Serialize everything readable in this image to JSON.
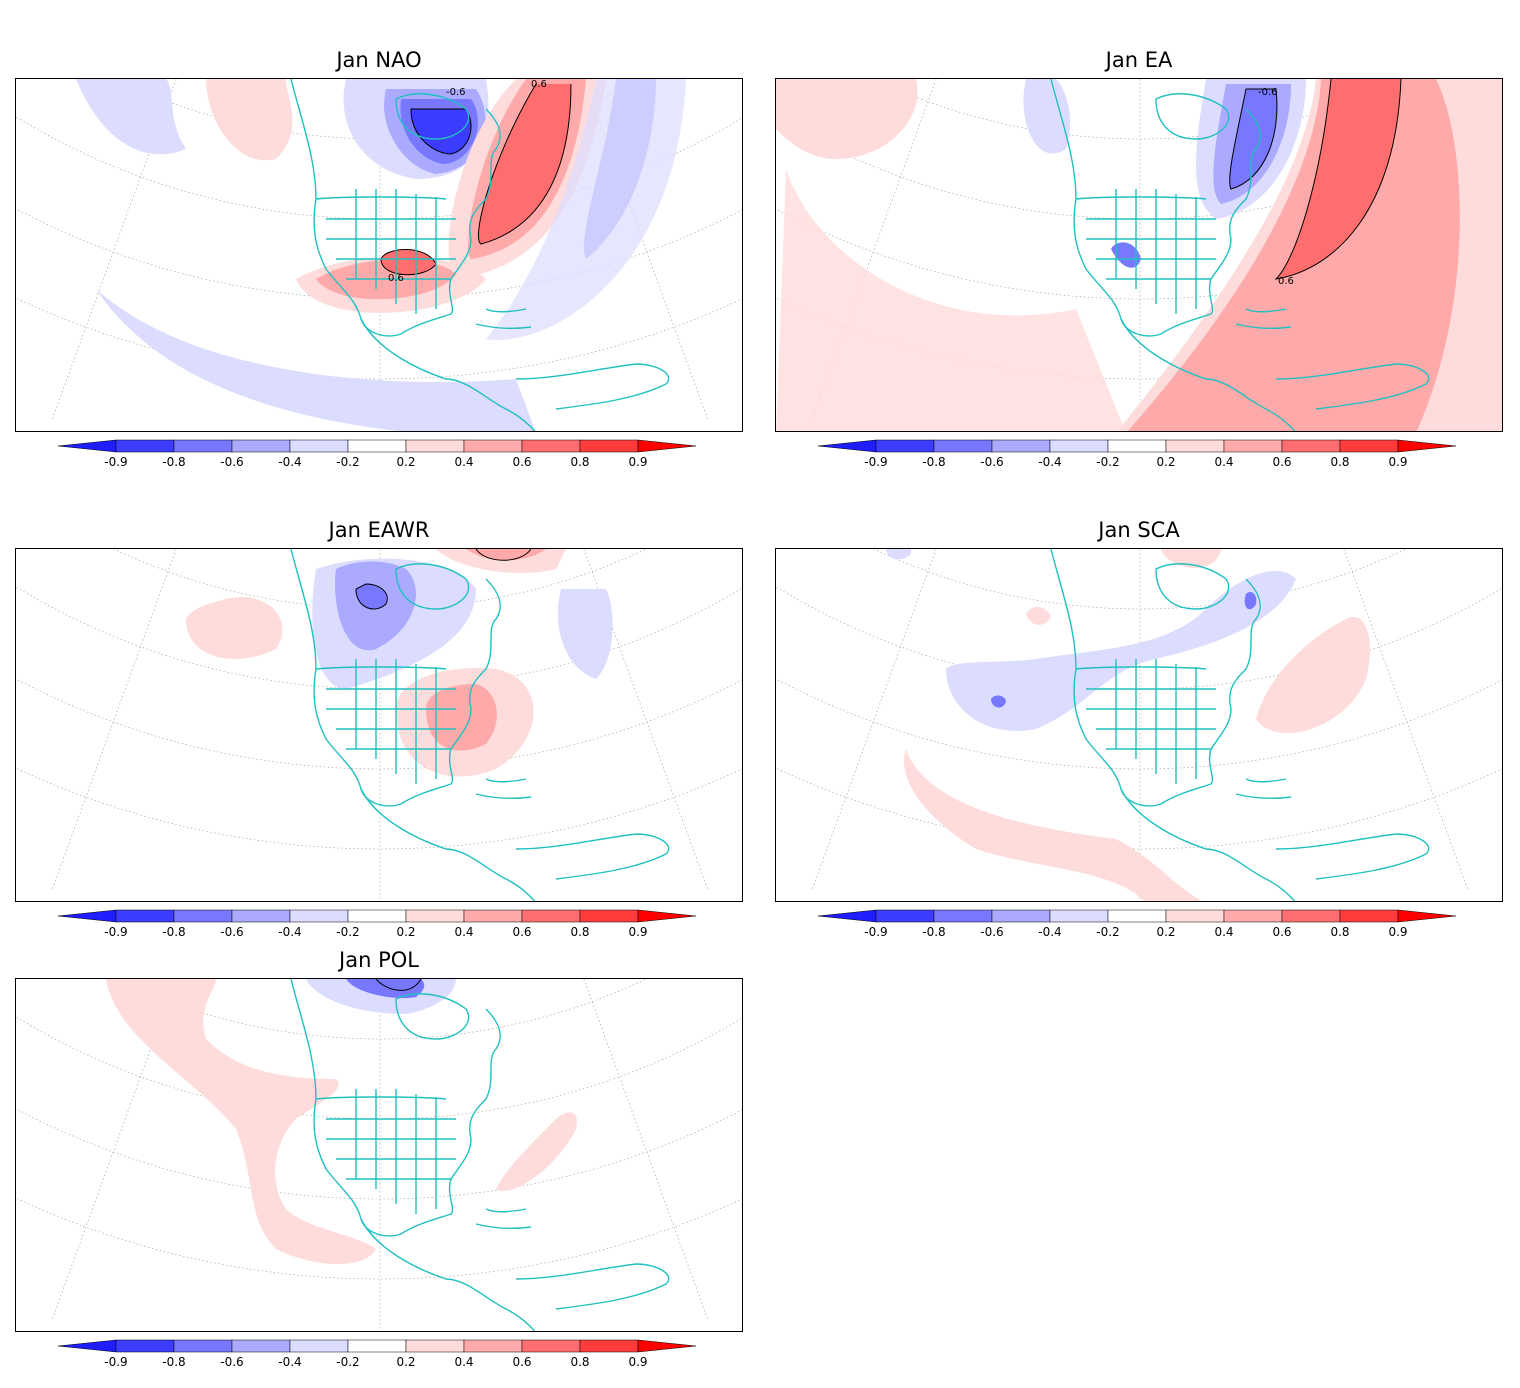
{
  "panels": [
    {
      "title": "Jan NAO",
      "contour_labels": [
        "-0.6",
        "0.6",
        "0.6"
      ]
    },
    {
      "title": "Jan EA",
      "contour_labels": [
        "-0.6",
        "0.6"
      ]
    },
    {
      "title": "Jan EAWR",
      "contour_labels": []
    },
    {
      "title": "Jan SCA",
      "contour_labels": []
    },
    {
      "title": "Jan POL",
      "contour_labels": []
    }
  ],
  "colorbar": {
    "ticks": [
      "-0.9",
      "-0.8",
      "-0.6",
      "-0.4",
      "-0.2",
      "0.2",
      "0.4",
      "0.6",
      "0.8",
      "0.9"
    ],
    "colors": [
      "#1e1eff",
      "#3c3cff",
      "#7878ff",
      "#aaaaff",
      "#dcdcff",
      "#ffffff",
      "#ffdcdc",
      "#ffaaaa",
      "#ff6e6e",
      "#ff3c3c",
      "#ff0000"
    ]
  },
  "map_colors": {
    "coast": "#20c0c0",
    "grid": "#999999"
  }
}
